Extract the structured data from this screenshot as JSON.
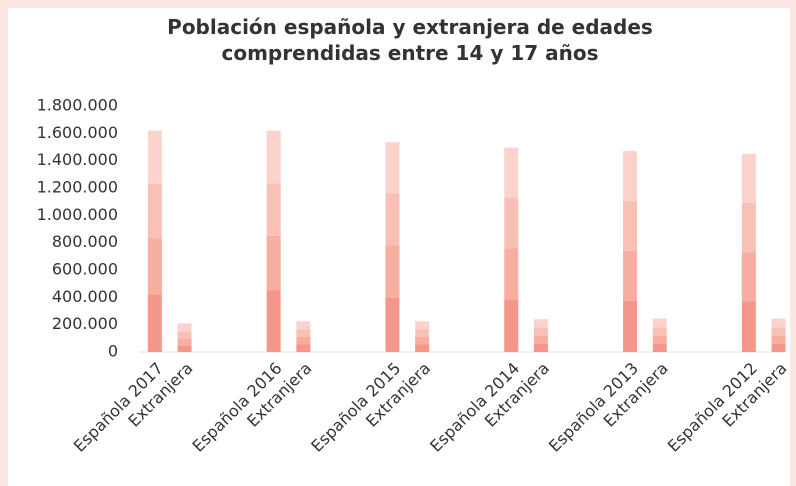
{
  "chart_data": {
    "type": "stacked_bar",
    "title": "Población española y extranjera de edades comprendidas entre 14 y 17 años",
    "categories": [
      "Española 2017",
      "Extranjera",
      null,
      null,
      "Española 2016",
      "Extranjera",
      null,
      null,
      "Española 2015",
      "Extranjera",
      null,
      null,
      "Española 2014",
      "Extranjera",
      null,
      null,
      "Española 2013",
      "Extranjera",
      null,
      null,
      "Española 2012",
      "Extranjera"
    ],
    "series": [
      {
        "color": "#f4978a",
        "values": [
          420000,
          45000,
          null,
          null,
          450000,
          55000,
          null,
          null,
          395000,
          55000,
          null,
          null,
          385000,
          60000,
          null,
          null,
          375000,
          60000,
          null,
          null,
          370000,
          60000
        ]
      },
      {
        "color": "#f7ad9f",
        "values": [
          410000,
          50000,
          null,
          null,
          400000,
          55000,
          null,
          null,
          385000,
          55000,
          null,
          null,
          375000,
          60000,
          null,
          null,
          365000,
          60000,
          null,
          null,
          360000,
          60000
        ]
      },
      {
        "color": "#f9c1b6",
        "values": [
          400000,
          55000,
          null,
          null,
          385000,
          55000,
          null,
          null,
          380000,
          55000,
          null,
          null,
          370000,
          60000,
          null,
          null,
          365000,
          60000,
          null,
          null,
          360000,
          60000
        ]
      },
      {
        "color": "#fbd3cc",
        "values": [
          390000,
          60000,
          null,
          null,
          385000,
          60000,
          null,
          null,
          375000,
          60000,
          null,
          null,
          365000,
          60000,
          null,
          null,
          365000,
          65000,
          null,
          null,
          360000,
          65000
        ]
      }
    ],
    "ylim": [
      0,
      1800000
    ],
    "yticks": [
      0,
      {
        "value": 200000,
        "label": "200.000"
      },
      {
        "value": 400000,
        "label": "400.000"
      },
      {
        "value": 600000,
        "label": "600.000"
      },
      {
        "value": 800000,
        "label": "800.000"
      },
      {
        "value": 1000000,
        "label": "1.000.000"
      },
      {
        "value": 1200000,
        "label": "1.200.000"
      },
      {
        "value": 1400000,
        "label": "1.400.000"
      },
      {
        "value": 1600000,
        "label": "1.600.000"
      },
      {
        "value": 1800000,
        "label": "1.800.000"
      }
    ],
    "grid": false
  }
}
